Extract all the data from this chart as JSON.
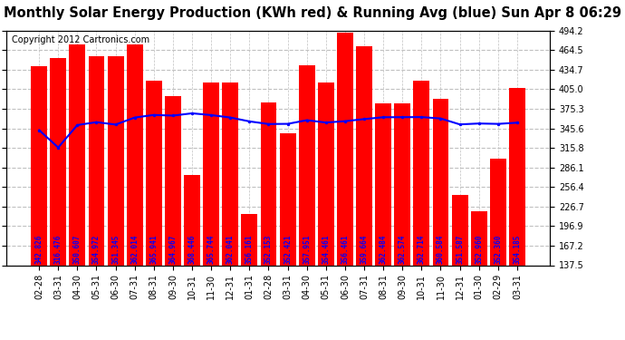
{
  "title": "Monthly Solar Energy Production (KWh red) & Running Avg (blue) Sun Apr 8 06:29",
  "copyright": "Copyright 2012 Cartronics.com",
  "bar_color": "#ff0000",
  "line_color": "#0000ff",
  "background_color": "#ffffff",
  "grid_color": "#c0c0c0",
  "text_color": "#0000ff",
  "ylim": [
    137.5,
    494.2
  ],
  "yticks": [
    137.5,
    167.2,
    196.9,
    226.7,
    256.4,
    286.1,
    315.8,
    345.6,
    375.3,
    405.0,
    434.7,
    464.5,
    494.2
  ],
  "categories": [
    "02-28",
    "03-31",
    "04-30",
    "05-31",
    "06-30",
    "07-31",
    "08-31",
    "09-30",
    "10-31",
    "11-30",
    "12-31",
    "01-31",
    "02-28",
    "03-31",
    "04-30",
    "05-31",
    "06-30",
    "07-31",
    "08-31",
    "09-30",
    "10-31",
    "11-30",
    "12-31",
    "01-30",
    "02-29",
    "03-31"
  ],
  "bar_values": [
    440,
    452,
    473,
    455,
    455,
    473,
    418,
    395,
    275,
    415,
    415,
    215,
    385,
    338,
    442,
    415,
    491,
    470,
    383,
    383,
    418,
    390,
    245,
    220,
    300,
    407
  ],
  "avg_values": [
    342.826,
    316.476,
    350.607,
    354.972,
    351.345,
    362.014,
    365.941,
    364.967,
    368.446,
    365.744,
    362.041,
    356.161,
    352.153,
    352.421,
    357.951,
    354.461,
    356.461,
    359.664,
    362.484,
    362.574,
    362.714,
    360.584,
    351.587,
    352.96,
    352.36,
    354.185
  ],
  "bar_width": 0.85,
  "title_fontsize": 10.5,
  "copyright_fontsize": 7,
  "tick_fontsize": 7,
  "bar_label_fontsize": 5.5
}
